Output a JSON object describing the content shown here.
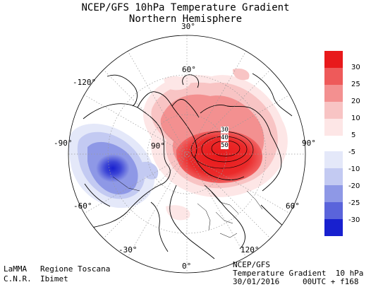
{
  "header": {
    "title": "NCEP/GFS 10hPa Temperature Gradient",
    "subtitle": "Northern Hemisphere"
  },
  "map": {
    "longitude_labels": [
      "30°",
      "60°",
      "90°",
      "120°",
      "-120°",
      "-90°",
      "-60°",
      "-30°",
      "0°"
    ],
    "latitude_labels": [
      "60°",
      "30°"
    ],
    "contour_labels": [
      "30",
      "40",
      "50"
    ]
  },
  "colorbar": {
    "positive_labels": [
      "30",
      "25",
      "20",
      "10",
      "5"
    ],
    "negative_labels": [
      "-5",
      "-10",
      "-20",
      "-25",
      "-30"
    ],
    "positive_colors": [
      "#e8191b",
      "#ee5a5a",
      "#f39090",
      "#f8c4c4",
      "#fde6e6"
    ],
    "negative_colors": [
      "#e4e8f9",
      "#c3caf2",
      "#8e98e6",
      "#5a64db",
      "#1820cf"
    ]
  },
  "footer": {
    "left_line1_org": "LaMMA",
    "left_line1_region": "Regione Toscana",
    "left_line2_org": "C.N.R.",
    "left_line2_inst": "Ibimet",
    "right_line1": "NCEP/GFS",
    "right_line2": "Temperature Gradient  10 hPa",
    "right_line3_date": "30/01/2016",
    "right_line3_run": "00UTC + f168"
  }
}
